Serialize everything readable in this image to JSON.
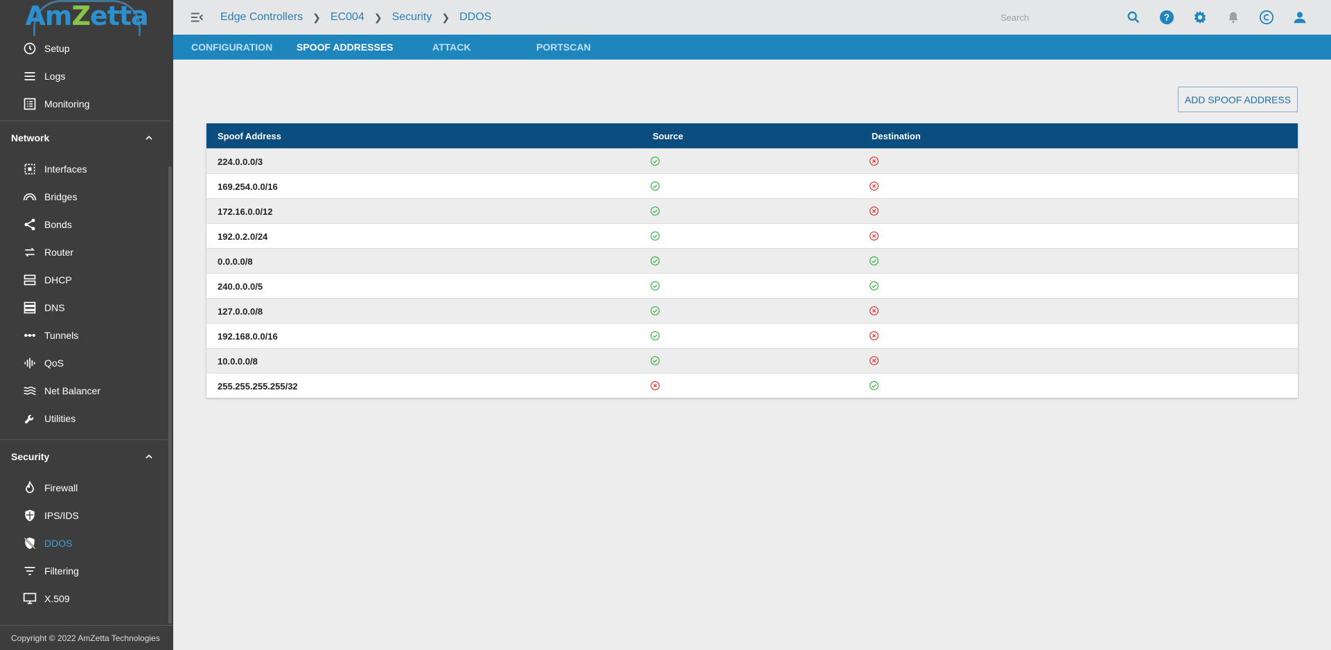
{
  "brand": {
    "logo_text_1": "Am",
    "logo_text_2": "Z",
    "logo_text_3": "etta"
  },
  "breadcrumbs": [
    "Edge Controllers",
    "EC004",
    "Security",
    "DDOS"
  ],
  "search": {
    "placeholder": "Search"
  },
  "tabs": [
    {
      "label": "CONFIGURATION",
      "active": false
    },
    {
      "label": "SPOOF ADDRESSES",
      "active": true
    },
    {
      "label": "ATTACK",
      "active": false
    },
    {
      "label": "PORTSCAN",
      "active": false
    }
  ],
  "sidebar": {
    "top_items": [
      {
        "label": "Setup",
        "icon": "clock-icon"
      },
      {
        "label": "Logs",
        "icon": "list-icon"
      },
      {
        "label": "Monitoring",
        "icon": "monitoring-icon"
      }
    ],
    "network": {
      "title": "Network",
      "items": [
        {
          "label": "Interfaces",
          "icon": "interfaces-icon"
        },
        {
          "label": "Bridges",
          "icon": "bridge-icon"
        },
        {
          "label": "Bonds",
          "icon": "share-icon"
        },
        {
          "label": "Router",
          "icon": "swap-icon"
        },
        {
          "label": "DHCP",
          "icon": "dhcp-icon"
        },
        {
          "label": "DNS",
          "icon": "dns-icon"
        },
        {
          "label": "Tunnels",
          "icon": "tunnel-icon"
        },
        {
          "label": "QoS",
          "icon": "qos-icon"
        },
        {
          "label": "Net Balancer",
          "icon": "waves-icon"
        },
        {
          "label": "Utilities",
          "icon": "wrench-icon"
        }
      ]
    },
    "security": {
      "title": "Security",
      "items": [
        {
          "label": "Firewall",
          "icon": "fire-icon",
          "active": false
        },
        {
          "label": "IPS/IDS",
          "icon": "shield-icon",
          "active": false
        },
        {
          "label": "DDOS",
          "icon": "ddos-icon",
          "active": true
        },
        {
          "label": "Filtering",
          "icon": "filter-icon",
          "active": false
        },
        {
          "label": "X.509",
          "icon": "certificate-icon",
          "active": false
        }
      ]
    },
    "copyright": "Copyright © 2022 AmZetta Technologies"
  },
  "main": {
    "add_button_label": "ADD SPOOF ADDRESS"
  },
  "table": {
    "headers": [
      "Spoof Address",
      "Source",
      "Destination"
    ],
    "rows": [
      {
        "address": "224.0.0.0/3",
        "source": true,
        "destination": false
      },
      {
        "address": "169.254.0.0/16",
        "source": true,
        "destination": false
      },
      {
        "address": "172.16.0.0/12",
        "source": true,
        "destination": false
      },
      {
        "address": "192.0.2.0/24",
        "source": true,
        "destination": false
      },
      {
        "address": "0.0.0.0/8",
        "source": true,
        "destination": true
      },
      {
        "address": "240.0.0.0/5",
        "source": true,
        "destination": true
      },
      {
        "address": "127.0.0.0/8",
        "source": true,
        "destination": false
      },
      {
        "address": "192.168.0.0/16",
        "source": true,
        "destination": false
      },
      {
        "address": "10.0.0.0/8",
        "source": true,
        "destination": false
      },
      {
        "address": "255.255.255.255/32",
        "source": false,
        "destination": true
      }
    ]
  },
  "colors": {
    "accent": "#1f86bd",
    "header": "#0b4d7e",
    "ok": "#3cb54a",
    "error": "#e53935",
    "sidebar": "#3d3d3d"
  }
}
